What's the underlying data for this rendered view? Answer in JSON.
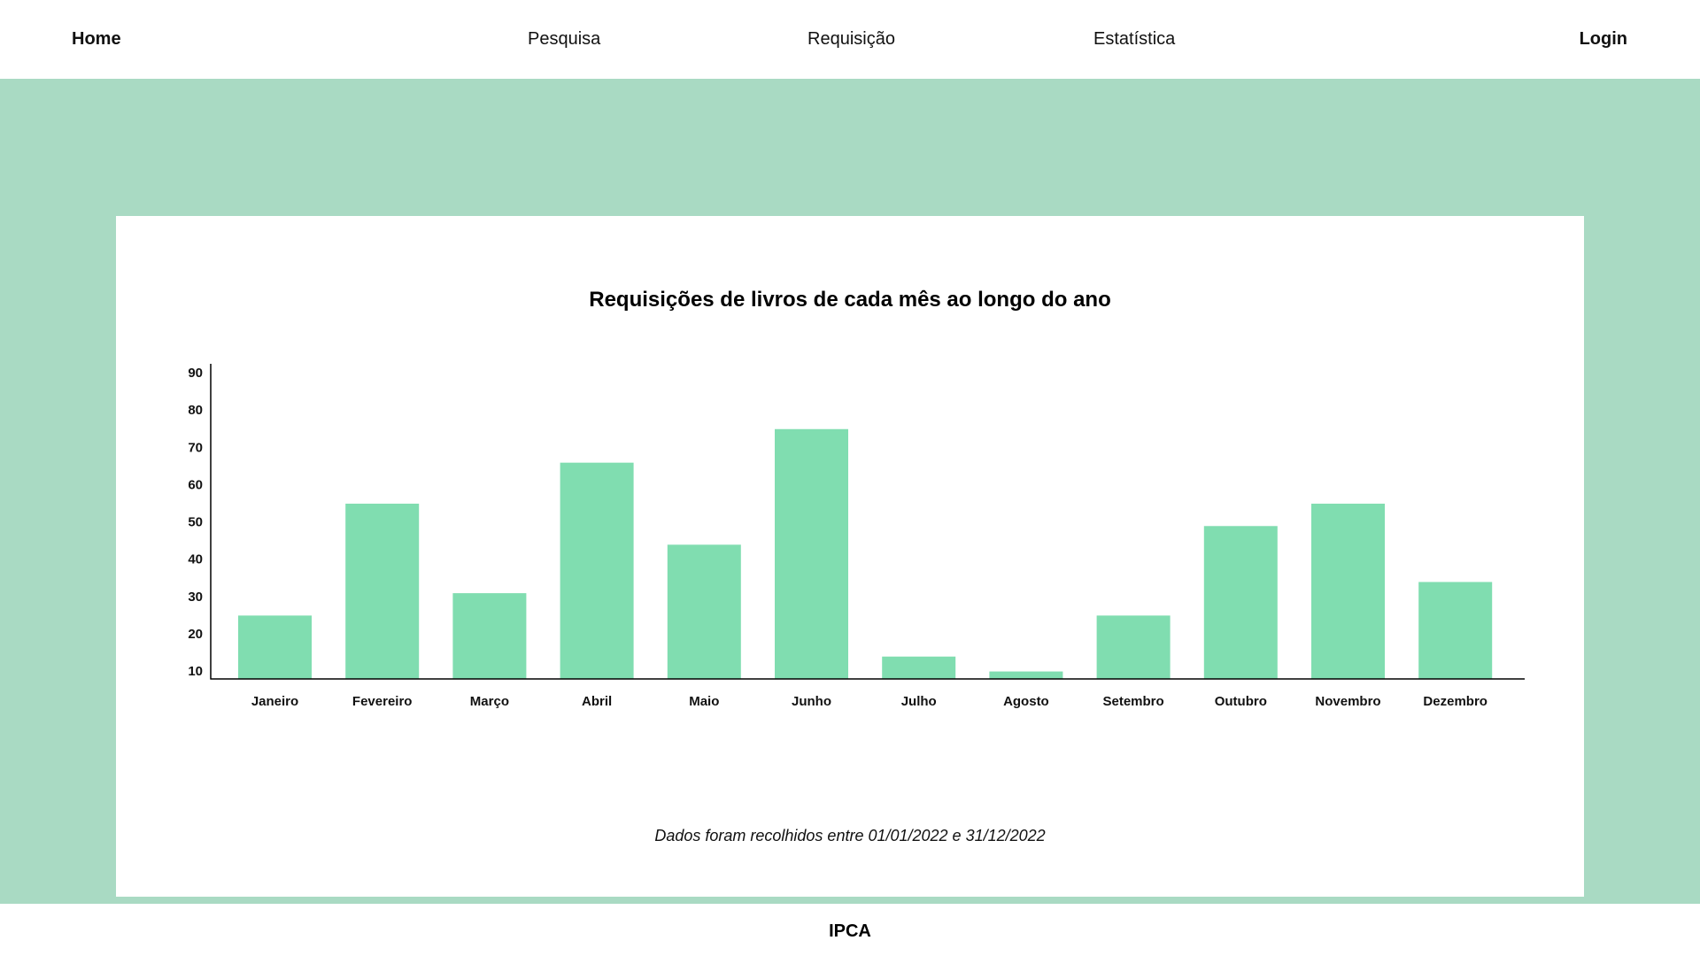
{
  "nav": {
    "home": "Home",
    "pesquisa": "Pesquisa",
    "requisicao": "Requisição",
    "estatistica": "Estatística",
    "login": "Login"
  },
  "colors": {
    "band": "#a9dac3",
    "bar": "#80ddb0",
    "axis": "#000000"
  },
  "note": "Dados foram recolhidos entre 01/01/2022 e 31/12/2022",
  "footer": {
    "brand": "IPCA"
  },
  "chart_data": {
    "type": "bar",
    "title": "Requisições de livros de cada mês ao longo do ano",
    "xlabel": "",
    "ylabel": "",
    "categories": [
      "Janeiro",
      "Fevereiro",
      "Março",
      "Abril",
      "Maio",
      "Junho",
      "Julho",
      "Agosto",
      "Setembro",
      "Outubro",
      "Novembro",
      "Dezembro"
    ],
    "values": [
      17,
      47,
      23,
      58,
      36,
      67,
      6,
      2,
      17,
      41,
      47,
      26
    ],
    "yticks": [
      10,
      20,
      30,
      40,
      50,
      60,
      70,
      80,
      90
    ],
    "ylim": [
      0,
      85
    ],
    "grid": false,
    "legend": "none"
  }
}
